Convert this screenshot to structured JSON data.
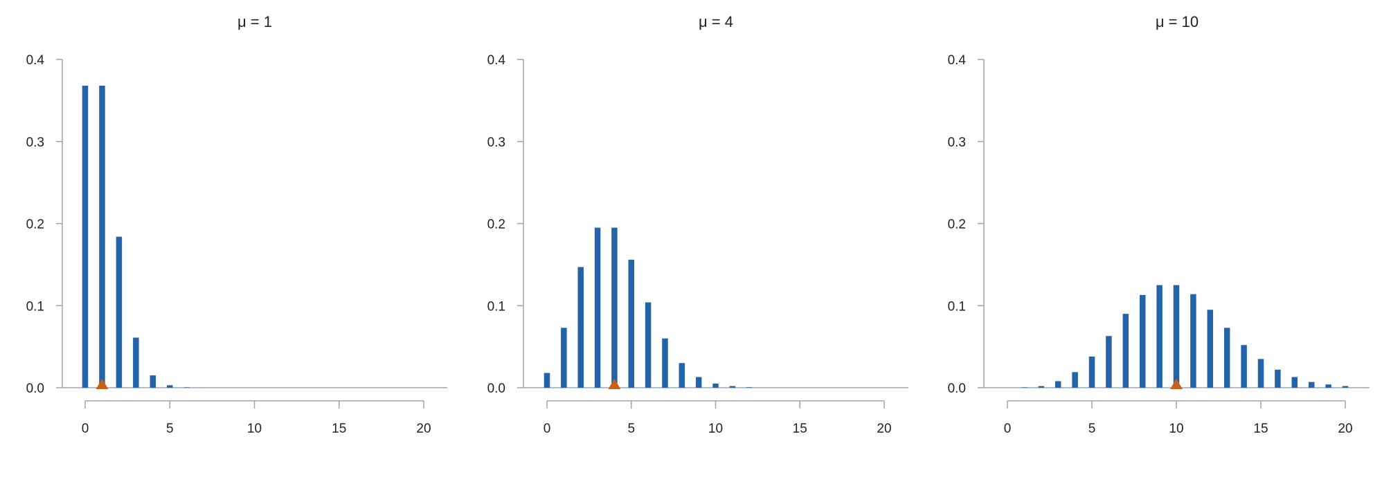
{
  "colors": {
    "bar": "#2563a8",
    "marker": "#c8601a",
    "axis": "#9aa3b5",
    "text": "#222222"
  },
  "chart_data": [
    {
      "type": "bar",
      "title": "μ = 1",
      "mean": 1,
      "x": [
        0,
        1,
        2,
        3,
        4,
        5,
        6,
        7,
        8,
        9,
        10,
        11,
        12,
        13,
        14,
        15,
        16,
        17,
        18,
        19,
        20
      ],
      "values": [
        0.368,
        0.368,
        0.184,
        0.061,
        0.015,
        0.003,
        0.0005,
        0.0001,
        0,
        0,
        0,
        0,
        0,
        0,
        0,
        0,
        0,
        0,
        0,
        0,
        0
      ],
      "xticks": [
        "0",
        "5",
        "10",
        "15",
        "20"
      ],
      "yticks": [
        "0.0",
        "0.1",
        "0.2",
        "0.3",
        "0.4"
      ],
      "xlim": [
        0,
        20
      ],
      "ylim": [
        0,
        0.4
      ],
      "grid": false,
      "marker": "triangle at mean"
    },
    {
      "type": "bar",
      "title": "μ = 4",
      "mean": 4,
      "x": [
        0,
        1,
        2,
        3,
        4,
        5,
        6,
        7,
        8,
        9,
        10,
        11,
        12,
        13,
        14,
        15,
        16,
        17,
        18,
        19,
        20
      ],
      "values": [
        0.018,
        0.073,
        0.147,
        0.195,
        0.195,
        0.156,
        0.104,
        0.06,
        0.03,
        0.013,
        0.005,
        0.002,
        0.0006,
        0.0002,
        0,
        0,
        0,
        0,
        0,
        0,
        0
      ],
      "xticks": [
        "0",
        "5",
        "10",
        "15",
        "20"
      ],
      "yticks": [
        "0.0",
        "0.1",
        "0.2",
        "0.3",
        "0.4"
      ],
      "xlim": [
        0,
        20
      ],
      "ylim": [
        0,
        0.4
      ],
      "grid": false,
      "marker": "triangle at mean"
    },
    {
      "type": "bar",
      "title": "μ = 10",
      "mean": 10,
      "x": [
        0,
        1,
        2,
        3,
        4,
        5,
        6,
        7,
        8,
        9,
        10,
        11,
        12,
        13,
        14,
        15,
        16,
        17,
        18,
        19,
        20
      ],
      "values": [
        5e-05,
        0.0005,
        0.002,
        0.008,
        0.019,
        0.038,
        0.063,
        0.09,
        0.113,
        0.125,
        0.125,
        0.114,
        0.095,
        0.073,
        0.052,
        0.035,
        0.022,
        0.013,
        0.007,
        0.004,
        0.002
      ],
      "xticks": [
        "0",
        "5",
        "10",
        "15",
        "20"
      ],
      "yticks": [
        "0.0",
        "0.1",
        "0.2",
        "0.3",
        "0.4"
      ],
      "xlim": [
        0,
        20
      ],
      "ylim": [
        0,
        0.4
      ],
      "grid": false,
      "marker": "triangle at mean"
    }
  ]
}
